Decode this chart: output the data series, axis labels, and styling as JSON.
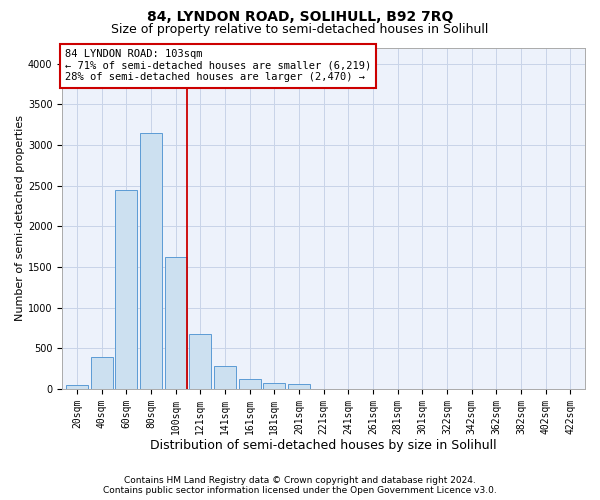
{
  "title": "84, LYNDON ROAD, SOLIHULL, B92 7RQ",
  "subtitle": "Size of property relative to semi-detached houses in Solihull",
  "xlabel": "Distribution of semi-detached houses by size in Solihull",
  "ylabel": "Number of semi-detached properties",
  "footnote1": "Contains HM Land Registry data © Crown copyright and database right 2024.",
  "footnote2": "Contains public sector information licensed under the Open Government Licence v3.0.",
  "bar_color": "#cce0f0",
  "bar_edge_color": "#5b9bd5",
  "grid_color": "#c8d4e8",
  "subject_line_color": "#cc0000",
  "annotation_box_edge": "#cc0000",
  "annotation_title": "84 LYNDON ROAD: 103sqm",
  "annotation_line1": "← 71% of semi-detached houses are smaller (6,219)",
  "annotation_line2": "28% of semi-detached houses are larger (2,470) →",
  "categories": [
    "20sqm",
    "40sqm",
    "60sqm",
    "80sqm",
    "100sqm",
    "121sqm",
    "141sqm",
    "161sqm",
    "181sqm",
    "201sqm",
    "221sqm",
    "241sqm",
    "261sqm",
    "281sqm",
    "301sqm",
    "322sqm",
    "342sqm",
    "362sqm",
    "382sqm",
    "402sqm",
    "422sqm"
  ],
  "values": [
    50,
    390,
    2450,
    3150,
    1620,
    670,
    280,
    120,
    70,
    60,
    5,
    3,
    2,
    1,
    0,
    0,
    0,
    0,
    0,
    0,
    0
  ],
  "subject_bar_index": 4,
  "ylim": [
    0,
    4200
  ],
  "yticks": [
    0,
    500,
    1000,
    1500,
    2000,
    2500,
    3000,
    3500,
    4000
  ],
  "background_color": "#edf2fb",
  "fig_bg": "#ffffff",
  "title_fontsize": 10,
  "subtitle_fontsize": 9,
  "ylabel_fontsize": 8,
  "xlabel_fontsize": 9,
  "tick_fontsize": 7,
  "footnote_fontsize": 6.5,
  "bar_width": 0.9
}
